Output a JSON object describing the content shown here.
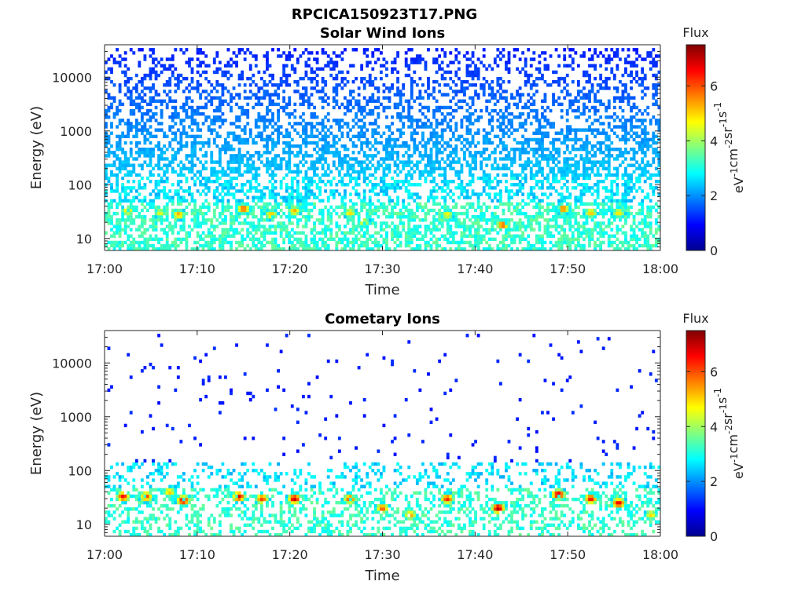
{
  "figure": {
    "title": "RPCICA150923T17.PNG"
  },
  "colormap": [
    "#00008f",
    "#0000ff",
    "#0080ff",
    "#00ffff",
    "#80ff80",
    "#ffff00",
    "#ff8000",
    "#ff0000",
    "#800000"
  ],
  "chart_data": [
    {
      "type": "heatmap",
      "title": "Solar Wind Ions",
      "xlabel": "Time",
      "ylabel": "Energy (eV)",
      "xlim": [
        "17:00",
        "18:00"
      ],
      "x_ticks": [
        "17:00",
        "17:10",
        "17:20",
        "17:30",
        "17:40",
        "17:50",
        "18:00"
      ],
      "ylim": [
        6,
        40000
      ],
      "yscale": "log",
      "y_ticks": [
        {
          "value": 10,
          "label": "10"
        },
        {
          "value": 100,
          "label": "100"
        },
        {
          "value": 1000,
          "label": "1000"
        },
        {
          "value": 10000,
          "label": "10000"
        }
      ],
      "colorbar": {
        "title": "Flux",
        "unit": "eV-1cm-2sr-1s-1",
        "min": 0,
        "max": 7.5,
        "ticks": [
          "0",
          "2",
          "4",
          "6"
        ]
      },
      "hot_spots": [
        {
          "t": 2.5,
          "e": 33,
          "flux": 5.0
        },
        {
          "t": 6,
          "e": 30,
          "flux": 4.6
        },
        {
          "t": 8,
          "e": 28,
          "flux": 5.4
        },
        {
          "t": 15,
          "e": 36,
          "flux": 6.0
        },
        {
          "t": 18,
          "e": 28,
          "flux": 5.2
        },
        {
          "t": 20.5,
          "e": 33,
          "flux": 5.3
        },
        {
          "t": 26.5,
          "e": 30,
          "flux": 5.0
        },
        {
          "t": 28,
          "e": 20,
          "flux": 4.7
        },
        {
          "t": 37,
          "e": 28,
          "flux": 4.8
        },
        {
          "t": 43,
          "e": 18,
          "flux": 6.0
        },
        {
          "t": 49.5,
          "e": 36,
          "flux": 5.8
        },
        {
          "t": 52.5,
          "e": 30,
          "flux": 5.2
        },
        {
          "t": 55.5,
          "e": 30,
          "flux": 5.0
        }
      ],
      "background": {
        "low_flux": 3.0,
        "high_energy_density": 0.55
      }
    },
    {
      "type": "heatmap",
      "title": "Cometary Ions",
      "xlabel": "Time",
      "ylabel": "Energy (eV)",
      "xlim": [
        "17:00",
        "18:00"
      ],
      "x_ticks": [
        "17:00",
        "17:10",
        "17:20",
        "17:30",
        "17:40",
        "17:50",
        "18:00"
      ],
      "ylim": [
        6,
        40000
      ],
      "yscale": "log",
      "y_ticks": [
        {
          "value": 10,
          "label": "10"
        },
        {
          "value": 100,
          "label": "100"
        },
        {
          "value": 1000,
          "label": "1000"
        },
        {
          "value": 10000,
          "label": "10000"
        }
      ],
      "colorbar": {
        "title": "Flux",
        "unit": "eV-1cm-2sr-1s-1",
        "min": 0,
        "max": 7.5,
        "ticks": [
          "0",
          "2",
          "4",
          "6"
        ]
      },
      "hot_spots": [
        {
          "t": 2,
          "e": 33,
          "flux": 6.6
        },
        {
          "t": 4.5,
          "e": 33,
          "flux": 6.2
        },
        {
          "t": 7,
          "e": 40,
          "flux": 5.2
        },
        {
          "t": 8.5,
          "e": 28,
          "flux": 6.8
        },
        {
          "t": 14.5,
          "e": 33,
          "flux": 6.8
        },
        {
          "t": 17,
          "e": 30,
          "flux": 6.2
        },
        {
          "t": 20.5,
          "e": 30,
          "flux": 7.0
        },
        {
          "t": 26.5,
          "e": 30,
          "flux": 6.2
        },
        {
          "t": 30,
          "e": 20,
          "flux": 6.0
        },
        {
          "t": 33,
          "e": 15,
          "flux": 5.5
        },
        {
          "t": 37,
          "e": 30,
          "flux": 6.4
        },
        {
          "t": 42.5,
          "e": 20,
          "flux": 7.2
        },
        {
          "t": 49,
          "e": 36,
          "flux": 7.0
        },
        {
          "t": 52.5,
          "e": 30,
          "flux": 6.6
        },
        {
          "t": 55.5,
          "e": 25,
          "flux": 6.8
        },
        {
          "t": 59,
          "e": 15,
          "flux": 5.0
        }
      ],
      "background": {
        "low_flux": 3.0,
        "high_energy_density": 0.02
      }
    }
  ]
}
